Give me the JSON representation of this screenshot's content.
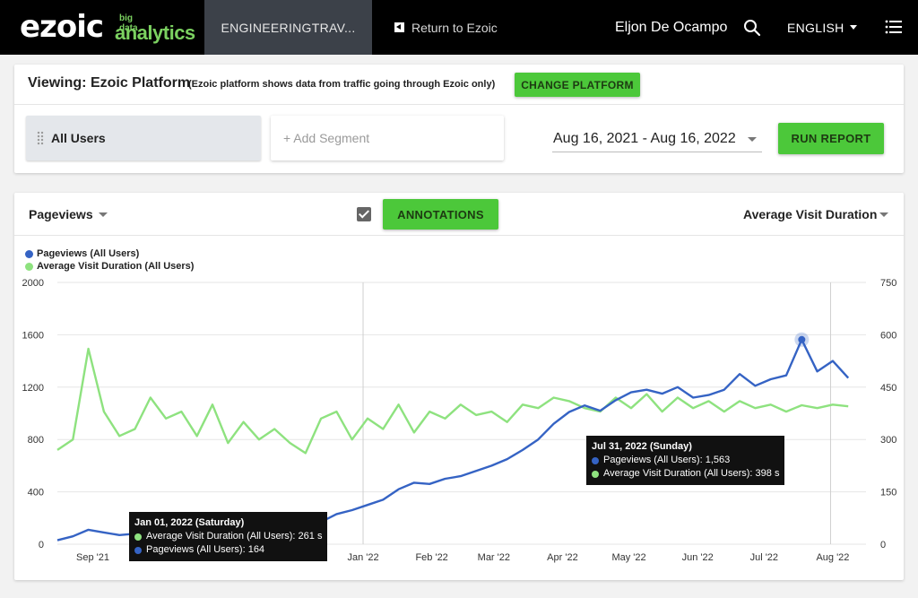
{
  "topbar": {
    "logo_main": "ezoic",
    "logo_small": "big data",
    "logo_sub": "analytics",
    "site_tab": "ENGINEERINGTRAV...",
    "return_label": "Return to Ezoic",
    "return_icon": "back-arrow-icon",
    "user_name": "Eljon De Ocampo",
    "search_icon": "search-icon",
    "language": "ENGLISH",
    "menu_icon": "list-menu-icon"
  },
  "viewing": {
    "title": "Viewing: Ezoic Platform",
    "note": "(Ezoic platform shows data from traffic going through Ezoic only)",
    "change_platform": "CHANGE PLATFORM",
    "segment_all": "All Users",
    "add_segment": "+ Add Segment",
    "date_range": "Aug 16, 2021 - Aug 16, 2022",
    "run_report": "RUN REPORT"
  },
  "chart_header": {
    "left_metric": "Pageviews",
    "annotations_checked": true,
    "annotations_label": "ANNOTATIONS",
    "right_metric": "Average Visit Duration"
  },
  "colors": {
    "pageviews": "#3563c4",
    "duration": "#8ee27f",
    "accent_green": "#4cc83a"
  },
  "chart_data": {
    "type": "line",
    "legend": [
      "Pageviews (All Users)",
      "Average Visit Duration (All Users)"
    ],
    "legend_placement": "top-left",
    "x_tick_labels": [
      "Sep '21",
      "Oct '21",
      "Nov '21",
      "Dec '21",
      "Jan '22",
      "Feb '22",
      "Mar '22",
      "Apr '22",
      "May '22",
      "Jun '22",
      "Jul '22",
      "Aug '22"
    ],
    "y_left": {
      "ticks": [
        "0",
        "400",
        "800",
        "1200",
        "1600",
        "2000"
      ],
      "range": [
        0,
        2000
      ]
    },
    "y_right": {
      "ticks": [
        "0",
        "150",
        "300",
        "450",
        "600",
        "750"
      ],
      "range": [
        0,
        750
      ]
    },
    "grid": true,
    "x_start": "2021-08-16",
    "x_end": "2022-08-16",
    "series": [
      {
        "name": "Pageviews (All Users)",
        "axis": "left",
        "step_days": 7,
        "values": [
          30,
          60,
          110,
          90,
          70,
          80,
          100,
          90,
          110,
          120,
          130,
          100,
          110,
          120,
          140,
          130,
          164,
          170,
          230,
          260,
          300,
          340,
          420,
          470,
          460,
          500,
          520,
          560,
          600,
          650,
          720,
          800,
          920,
          1010,
          1060,
          1020,
          1100,
          1160,
          1180,
          1150,
          1200,
          1120,
          1140,
          1180,
          1300,
          1210,
          1260,
          1290,
          1563,
          1320,
          1400,
          1270
        ]
      },
      {
        "name": "Average Visit Duration (All Users)",
        "axis": "right",
        "step_days": 7,
        "values": [
          270,
          300,
          560,
          380,
          310,
          330,
          420,
          360,
          380,
          310,
          400,
          290,
          350,
          300,
          330,
          290,
          261,
          360,
          380,
          300,
          360,
          330,
          400,
          320,
          380,
          360,
          400,
          370,
          380,
          350,
          400,
          390,
          420,
          410,
          390,
          380,
          420,
          390,
          430,
          380,
          420,
          390,
          410,
          380,
          410,
          390,
          400,
          380,
          398,
          390,
          400,
          395
        ]
      }
    ],
    "tooltips": [
      {
        "title": "Jan 01, 2022 (Saturday)",
        "rows": [
          "Average Visit Duration (All Users): 261 s",
          "Pageviews (All Users): 164"
        ]
      },
      {
        "title": "Jul 31, 2022 (Sunday)",
        "rows": [
          "Pageviews (All Users): 1,563",
          "Average Visit Duration (All Users): 398 s"
        ]
      }
    ]
  }
}
